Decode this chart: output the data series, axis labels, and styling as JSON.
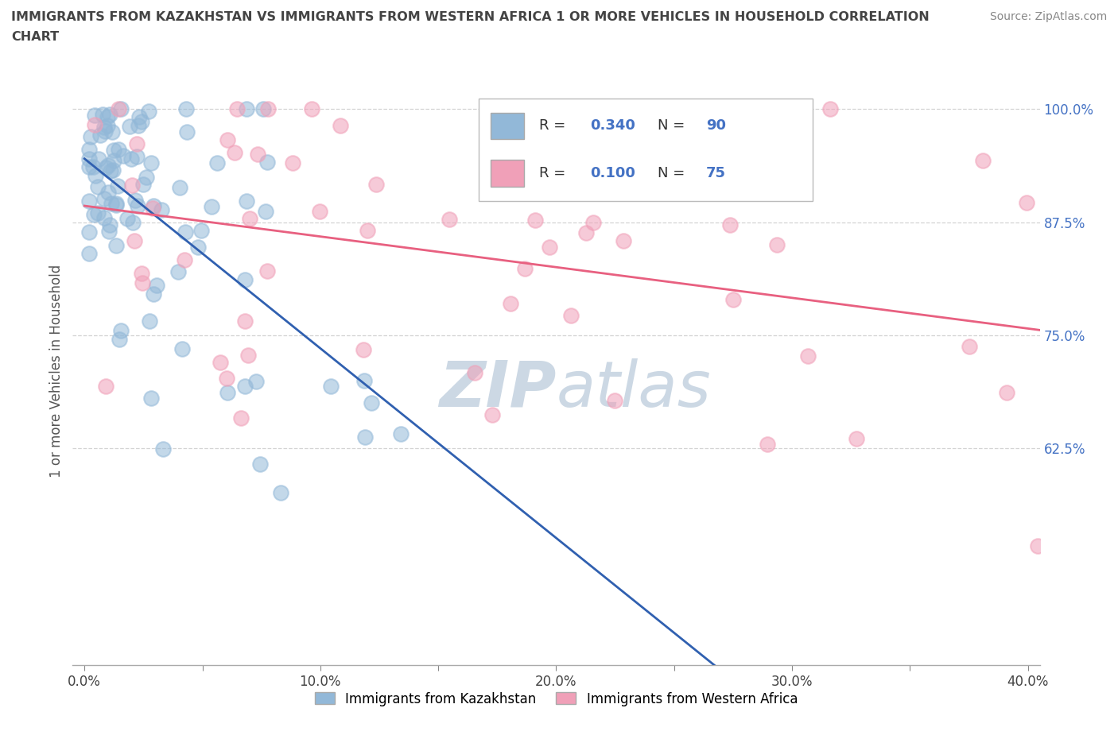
{
  "title_line1": "IMMIGRANTS FROM KAZAKHSTAN VS IMMIGRANTS FROM WESTERN AFRICA 1 OR MORE VEHICLES IN HOUSEHOLD CORRELATION",
  "title_line2": "CHART",
  "source": "Source: ZipAtlas.com",
  "xlim": [
    0.0,
    0.4
  ],
  "ylim": [
    0.4,
    1.03
  ],
  "ytick_positions": [
    0.625,
    0.75,
    0.875,
    1.0
  ],
  "ytick_labels": [
    "62.5%",
    "75.0%",
    "87.5%",
    "100.0%"
  ],
  "xtick_positions": [
    0.0,
    0.05,
    0.1,
    0.15,
    0.2,
    0.25,
    0.3,
    0.35,
    0.4
  ],
  "xtick_labels": [
    "0.0%",
    "",
    "10.0%",
    "",
    "20.0%",
    "",
    "30.0%",
    "",
    "40.0%"
  ],
  "kazakhstan_R": 0.34,
  "kazakhstan_N": 90,
  "western_africa_R": 0.1,
  "western_africa_N": 75,
  "kazakhstan_color": "#92b8d8",
  "western_africa_color": "#f0a0b8",
  "regression_line_kaz_color": "#3060b0",
  "regression_line_waf_color": "#e86080",
  "grid_color": "#c8c8c8",
  "background_color": "#ffffff",
  "watermark_color": "#ccd8e4",
  "title_color": "#444444",
  "legend_label_kaz": "Immigrants from Kazakhstan",
  "legend_label_waf": "Immigrants from Western Africa",
  "r_n_color": "#4472c4",
  "ylabel": "1 or more Vehicles in Household"
}
